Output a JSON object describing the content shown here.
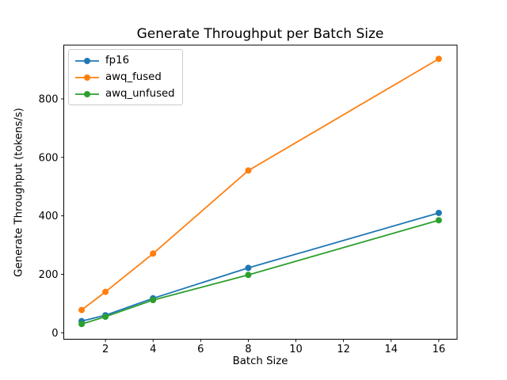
{
  "figure": {
    "background": "#ffffff"
  },
  "chart_data": {
    "type": "line",
    "title": "Generate Throughput per Batch Size",
    "xlabel": "Batch Size",
    "ylabel": "Generate Throughput (tokens/s)",
    "x": [
      1,
      2,
      4,
      8,
      16
    ],
    "series": [
      {
        "name": "fp16",
        "color": "#1f77b4",
        "values": [
          40,
          60,
          118,
          222,
          410
        ]
      },
      {
        "name": "awq_fused",
        "color": "#ff7f0e",
        "values": [
          78,
          140,
          271,
          555,
          937
        ]
      },
      {
        "name": "awq_unfused",
        "color": "#2ca02c",
        "values": [
          30,
          55,
          112,
          198,
          385
        ]
      }
    ],
    "xticks": [
      2,
      4,
      6,
      8,
      10,
      12,
      14,
      16
    ],
    "yticks": [
      0,
      200,
      400,
      600,
      800
    ],
    "xlim": [
      0.25,
      16.77
    ],
    "ylim": [
      -22,
      984
    ],
    "grid": false,
    "legend_position": "upper left",
    "marker": "o",
    "axis_color": "#000000"
  }
}
